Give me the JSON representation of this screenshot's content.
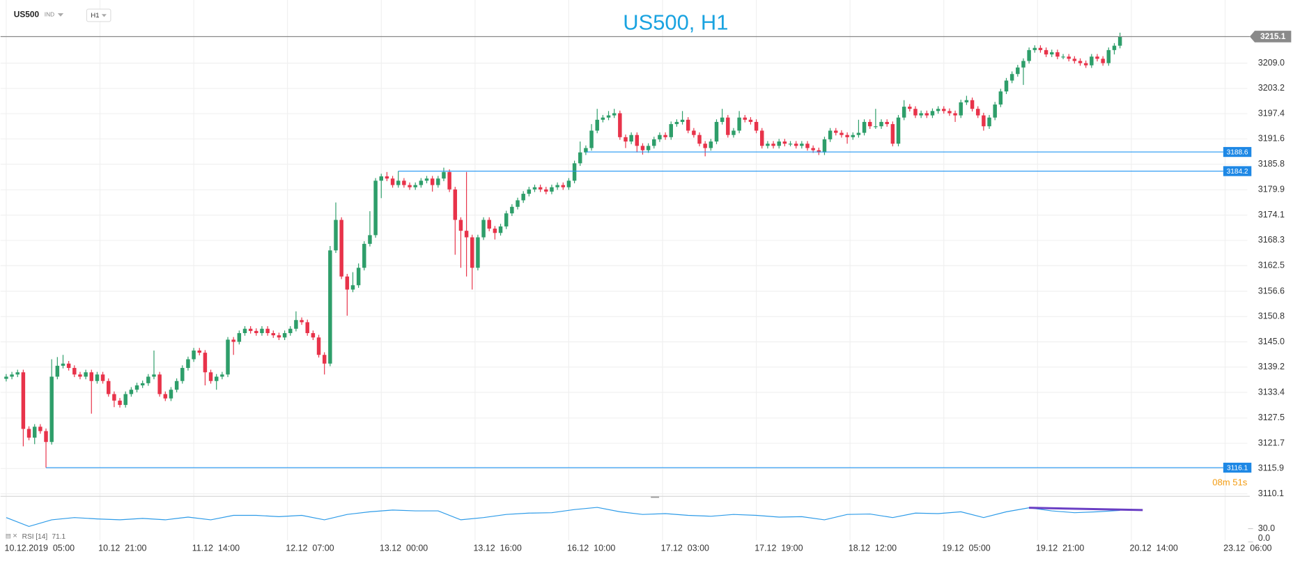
{
  "header": {
    "symbol": "US500",
    "market": "IND",
    "timeframe": "H1"
  },
  "chart_data": {
    "type": "candlestick",
    "title": "US500, H1",
    "up_color": "#2e9e6a",
    "down_color": "#e8334a",
    "xlim": [
      -1,
      218.4
    ],
    "ylim": [
      3109.7,
      3223.5
    ],
    "xticks": [
      {
        "value": 0,
        "label": "10.12.2019  05:00"
      },
      {
        "value": 16.5,
        "label": "10.12  21:00"
      },
      {
        "value": 33,
        "label": "11.12  14:00"
      },
      {
        "value": 49.5,
        "label": "12.12  07:00"
      },
      {
        "value": 66,
        "label": "13.12  00:00"
      },
      {
        "value": 82.5,
        "label": "13.12  16:00"
      },
      {
        "value": 99,
        "label": "16.12  10:00"
      },
      {
        "value": 115.5,
        "label": "17.12  03:00"
      },
      {
        "value": 132,
        "label": "17.12  19:00"
      },
      {
        "value": 148.5,
        "label": "18.12  12:00"
      },
      {
        "value": 165,
        "label": "19.12  05:00"
      },
      {
        "value": 181.5,
        "label": "19.12  21:00"
      },
      {
        "value": 198,
        "label": "20.12  14:00"
      },
      {
        "value": 214.5,
        "label": "23.12  06:00"
      }
    ],
    "yticks": [
      3110.1,
      3115.9,
      3121.7,
      3127.5,
      3133.4,
      3139.2,
      {
        "value": 3145,
        "label": "3145.0"
      },
      3150.8,
      3156.6,
      3162.5,
      3168.3,
      3174.1,
      3179.9,
      3185.8,
      3191.6,
      3197.4,
      3203.2,
      {
        "value": 3209,
        "label": "3209.0"
      }
    ],
    "grid": true,
    "candles": [
      [
        3136.5,
        3137.6,
        3135.9,
        3137.0
      ],
      [
        3137.0,
        3138.1,
        3136.4,
        3137.5
      ],
      [
        3137.5,
        3138.6,
        3136.9,
        3138.0
      ],
      [
        3138.0,
        3138.6,
        3121.0,
        3125.0
      ],
      [
        3125.0,
        3125.6,
        3122.4,
        3123.0
      ],
      [
        3123.0,
        3126.1,
        3121.5,
        3125.5
      ],
      [
        3125.5,
        3126.1,
        3123.9,
        3124.5
      ],
      [
        3124.5,
        3125.1,
        3116.1,
        3122.0
      ],
      [
        3122.0,
        3141.0,
        3121.4,
        3137.0
      ],
      [
        3137.0,
        3141.5,
        3136.4,
        3139.5
      ],
      [
        3139.5,
        3142.0,
        3138.9,
        3140.0
      ],
      [
        3140.0,
        3140.6,
        3138.4,
        3139.0
      ],
      [
        3139.0,
        3139.6,
        3136.9,
        3137.5
      ],
      [
        3137.5,
        3138.1,
        3136.4,
        3137.0
      ],
      [
        3137.0,
        3138.6,
        3136.4,
        3138.0
      ],
      [
        3138.0,
        3138.6,
        3128.5,
        3136.0
      ],
      [
        3136.0,
        3138.1,
        3135.4,
        3137.5
      ],
      [
        3137.5,
        3138.1,
        3135.4,
        3136.0
      ],
      [
        3136.0,
        3136.6,
        3132.4,
        3133.0
      ],
      [
        3133.0,
        3133.6,
        3130.0,
        3131.5
      ],
      [
        3131.5,
        3132.1,
        3129.9,
        3130.5
      ],
      [
        3130.5,
        3133.6,
        3129.9,
        3133.0
      ],
      [
        3133.0,
        3134.6,
        3132.4,
        3134.0
      ],
      [
        3134.0,
        3135.6,
        3133.4,
        3135.0
      ],
      [
        3135.0,
        3136.1,
        3134.4,
        3135.5
      ],
      [
        3135.5,
        3137.6,
        3134.9,
        3137.0
      ],
      [
        3137.0,
        3143.0,
        3136.4,
        3137.5
      ],
      [
        3137.5,
        3138.1,
        3132.4,
        3133.0
      ],
      [
        3133.0,
        3133.6,
        3131.4,
        3132.0
      ],
      [
        3132.0,
        3134.6,
        3131.4,
        3134.0
      ],
      [
        3134.0,
        3136.6,
        3133.4,
        3136.0
      ],
      [
        3136.0,
        3139.6,
        3135.4,
        3139.0
      ],
      [
        3139.0,
        3141.6,
        3138.4,
        3141.0
      ],
      [
        3141.0,
        3143.6,
        3140.4,
        3143.0
      ],
      [
        3143.0,
        3143.6,
        3141.9,
        3142.5
      ],
      [
        3142.5,
        3143.1,
        3135.0,
        3138.0
      ],
      [
        3138.0,
        3138.6,
        3135.4,
        3136.0
      ],
      [
        3136.0,
        3137.6,
        3134.0,
        3137.0
      ],
      [
        3137.0,
        3138.1,
        3136.4,
        3137.5
      ],
      [
        3137.5,
        3146.1,
        3136.9,
        3145.5
      ],
      [
        3145.5,
        3146.1,
        3142.0,
        3145.0
      ],
      [
        3145.0,
        3147.6,
        3144.4,
        3147.0
      ],
      [
        3147.0,
        3148.6,
        3146.4,
        3148.0
      ],
      [
        3148.0,
        3148.6,
        3146.9,
        3147.5
      ],
      [
        3147.5,
        3148.1,
        3146.4,
        3147.0
      ],
      [
        3147.0,
        3148.6,
        3146.4,
        3148.0
      ],
      [
        3148.0,
        3148.6,
        3146.4,
        3147.0
      ],
      [
        3147.0,
        3147.6,
        3145.9,
        3146.5
      ],
      [
        3146.5,
        3147.1,
        3145.4,
        3146.0
      ],
      [
        3146.0,
        3147.6,
        3145.4,
        3147.0
      ],
      [
        3147.0,
        3148.6,
        3146.4,
        3148.0
      ],
      [
        3148.0,
        3152.0,
        3147.4,
        3150.0
      ],
      [
        3150.0,
        3150.6,
        3148.9,
        3149.5
      ],
      [
        3149.5,
        3150.1,
        3146.4,
        3147.0
      ],
      [
        3147.0,
        3147.6,
        3145.4,
        3146.0
      ],
      [
        3146.0,
        3146.6,
        3141.4,
        3142.0
      ],
      [
        3142.0,
        3142.6,
        3137.5,
        3140.0
      ],
      [
        3140.0,
        3167.0,
        3139.4,
        3166.0
      ],
      [
        3166.0,
        3177.0,
        3165.4,
        3173.0
      ],
      [
        3173.0,
        3173.6,
        3159.4,
        3160.0
      ],
      [
        3160.0,
        3160.6,
        3151.0,
        3157.0
      ],
      [
        3157.0,
        3161.0,
        3156.4,
        3158.0
      ],
      [
        3158.0,
        3163.0,
        3157.4,
        3162.0
      ],
      [
        3162.0,
        3168.1,
        3161.4,
        3167.5
      ],
      [
        3167.5,
        3175.0,
        3166.9,
        3169.5
      ],
      [
        3169.5,
        3182.6,
        3168.9,
        3182.0
      ],
      [
        3182.0,
        3183.6,
        3178.0,
        3183.0
      ],
      [
        3183.0,
        3184.0,
        3181.9,
        3182.5
      ],
      [
        3182.5,
        3183.1,
        3180.4,
        3181.0
      ],
      [
        3181.0,
        3184.2,
        3180.4,
        3182.0
      ],
      [
        3182.0,
        3182.6,
        3180.4,
        3181.0
      ],
      [
        3181.0,
        3181.6,
        3179.9,
        3180.5
      ],
      [
        3180.5,
        3181.6,
        3179.9,
        3181.0
      ],
      [
        3181.0,
        3182.6,
        3180.4,
        3182.0
      ],
      [
        3182.0,
        3183.1,
        3181.4,
        3182.5
      ],
      [
        3182.5,
        3183.1,
        3179.5,
        3181.0
      ],
      [
        3181.0,
        3183.1,
        3180.4,
        3182.5
      ],
      [
        3182.5,
        3185.0,
        3181.9,
        3184.0
      ],
      [
        3184.0,
        3184.6,
        3179.4,
        3180.0
      ],
      [
        3180.0,
        3180.6,
        3165.0,
        3173.0
      ],
      [
        3173.0,
        3173.6,
        3162.0,
        3170.5
      ],
      [
        3170.5,
        3184.0,
        3160.0,
        3169.0
      ],
      [
        3169.0,
        3169.6,
        3157.0,
        3162.0
      ],
      [
        3162.0,
        3169.6,
        3161.4,
        3169.0
      ],
      [
        3169.0,
        3173.6,
        3168.4,
        3173.0
      ],
      [
        3173.0,
        3173.6,
        3170.4,
        3171.0
      ],
      [
        3171.0,
        3171.6,
        3168.5,
        3170.0
      ],
      [
        3170.0,
        3172.1,
        3169.4,
        3171.5
      ],
      [
        3171.5,
        3175.1,
        3170.9,
        3174.5
      ],
      [
        3174.5,
        3176.6,
        3173.9,
        3176.0
      ],
      [
        3176.0,
        3178.1,
        3175.4,
        3177.5
      ],
      [
        3177.5,
        3179.6,
        3176.9,
        3179.0
      ],
      [
        3179.0,
        3180.6,
        3178.4,
        3180.0
      ],
      [
        3180.0,
        3181.1,
        3179.4,
        3180.5
      ],
      [
        3180.5,
        3181.1,
        3179.4,
        3180.0
      ],
      [
        3180.0,
        3180.6,
        3178.9,
        3179.5
      ],
      [
        3179.5,
        3181.1,
        3178.9,
        3180.5
      ],
      [
        3180.5,
        3181.6,
        3179.9,
        3181.0
      ],
      [
        3181.0,
        3181.6,
        3179.9,
        3180.5
      ],
      [
        3180.5,
        3182.6,
        3179.9,
        3182.0
      ],
      [
        3182.0,
        3186.6,
        3181.4,
        3186.0
      ],
      [
        3186.0,
        3191.0,
        3185.4,
        3188.5
      ],
      [
        3188.5,
        3190.1,
        3187.9,
        3189.5
      ],
      [
        3189.5,
        3195.0,
        3188.9,
        3193.5
      ],
      [
        3193.5,
        3198.5,
        3192.9,
        3196.0
      ],
      [
        3196.0,
        3197.1,
        3195.4,
        3196.5
      ],
      [
        3196.5,
        3198.0,
        3195.9,
        3197.0
      ],
      [
        3197.0,
        3198.5,
        3196.4,
        3197.5
      ],
      [
        3197.5,
        3198.1,
        3191.4,
        3192.0
      ],
      [
        3192.0,
        3192.6,
        3189.5,
        3191.0
      ],
      [
        3191.0,
        3193.1,
        3190.4,
        3192.5
      ],
      [
        3192.5,
        3193.1,
        3188.5,
        3190.0
      ],
      [
        3190.0,
        3190.6,
        3188.0,
        3189.0
      ],
      [
        3189.0,
        3190.6,
        3188.4,
        3190.0
      ],
      [
        3190.0,
        3192.1,
        3189.4,
        3191.5
      ],
      [
        3191.5,
        3193.1,
        3190.9,
        3192.5
      ],
      [
        3192.5,
        3193.1,
        3191.4,
        3192.0
      ],
      [
        3192.0,
        3195.6,
        3191.4,
        3195.0
      ],
      [
        3195.0,
        3196.1,
        3194.4,
        3195.5
      ],
      [
        3195.5,
        3198.0,
        3194.9,
        3196.0
      ],
      [
        3196.0,
        3196.6,
        3192.9,
        3193.5
      ],
      [
        3193.5,
        3194.1,
        3191.9,
        3192.5
      ],
      [
        3192.5,
        3193.1,
        3189.9,
        3190.5
      ],
      [
        3190.5,
        3191.1,
        3187.6,
        3189.5
      ],
      [
        3189.5,
        3191.6,
        3188.9,
        3191.0
      ],
      [
        3191.0,
        3196.1,
        3190.4,
        3195.5
      ],
      [
        3195.5,
        3198.5,
        3194.9,
        3196.5
      ],
      [
        3196.5,
        3197.1,
        3191.9,
        3192.5
      ],
      [
        3192.5,
        3194.1,
        3191.9,
        3193.5
      ],
      [
        3193.5,
        3198.0,
        3192.9,
        3196.5
      ],
      [
        3196.5,
        3197.1,
        3195.4,
        3196.0
      ],
      [
        3196.0,
        3196.6,
        3194.9,
        3195.5
      ],
      [
        3195.5,
        3196.1,
        3192.9,
        3193.5
      ],
      [
        3193.5,
        3194.1,
        3189.4,
        3190.0
      ],
      [
        3190.0,
        3191.1,
        3189.4,
        3190.5
      ],
      [
        3190.5,
        3191.1,
        3189.4,
        3190.0
      ],
      [
        3190.0,
        3191.6,
        3189.4,
        3191.0
      ],
      [
        3191.0,
        3191.6,
        3189.9,
        3190.5
      ],
      [
        3190.5,
        3191.1,
        3189.9,
        3190.5
      ],
      [
        3190.5,
        3191.1,
        3189.4,
        3190.0
      ],
      [
        3190.0,
        3191.1,
        3189.4,
        3190.5
      ],
      [
        3190.5,
        3191.1,
        3188.9,
        3189.5
      ],
      [
        3189.5,
        3190.1,
        3188.4,
        3189.0
      ],
      [
        3189.0,
        3189.6,
        3187.9,
        3188.5
      ],
      [
        3188.5,
        3192.1,
        3187.9,
        3191.5
      ],
      [
        3191.5,
        3194.1,
        3190.9,
        3193.5
      ],
      [
        3193.5,
        3194.1,
        3192.4,
        3193.0
      ],
      [
        3193.0,
        3193.6,
        3191.9,
        3192.5
      ],
      [
        3192.5,
        3193.1,
        3190.5,
        3192.0
      ],
      [
        3192.0,
        3193.1,
        3191.4,
        3192.5
      ],
      [
        3192.5,
        3196.0,
        3191.9,
        3193.0
      ],
      [
        3193.0,
        3196.1,
        3192.4,
        3195.5
      ],
      [
        3195.5,
        3196.1,
        3193.9,
        3194.5
      ],
      [
        3194.5,
        3198.5,
        3193.9,
        3194.5
      ],
      [
        3194.5,
        3196.1,
        3193.9,
        3195.5
      ],
      [
        3195.5,
        3196.1,
        3194.4,
        3195.0
      ],
      [
        3195.0,
        3195.6,
        3189.9,
        3190.5
      ],
      [
        3190.5,
        3197.1,
        3189.9,
        3196.5
      ],
      [
        3196.5,
        3200.5,
        3195.9,
        3199.0
      ],
      [
        3199.0,
        3199.6,
        3197.9,
        3198.5
      ],
      [
        3198.5,
        3199.1,
        3196.4,
        3197.0
      ],
      [
        3197.0,
        3198.1,
        3196.4,
        3197.5
      ],
      [
        3197.5,
        3198.1,
        3196.4,
        3197.0
      ],
      [
        3197.0,
        3198.6,
        3196.4,
        3198.0
      ],
      [
        3198.0,
        3199.1,
        3197.4,
        3198.5
      ],
      [
        3198.5,
        3199.1,
        3197.4,
        3198.0
      ],
      [
        3198.0,
        3198.6,
        3196.9,
        3197.5
      ],
      [
        3197.5,
        3198.1,
        3195.5,
        3197.0
      ],
      [
        3197.0,
        3200.6,
        3196.4,
        3200.0
      ],
      [
        3200.0,
        3201.5,
        3199.4,
        3200.5
      ],
      [
        3200.5,
        3201.1,
        3197.9,
        3198.5
      ],
      [
        3198.5,
        3199.1,
        3196.4,
        3197.0
      ],
      [
        3197.0,
        3197.6,
        3193.5,
        3194.5
      ],
      [
        3194.5,
        3197.1,
        3193.9,
        3196.5
      ],
      [
        3196.5,
        3200.1,
        3195.9,
        3199.5
      ],
      [
        3199.5,
        3203.1,
        3198.9,
        3202.5
      ],
      [
        3202.5,
        3205.6,
        3201.9,
        3205.0
      ],
      [
        3205.0,
        3207.1,
        3204.4,
        3206.5
      ],
      [
        3206.5,
        3208.6,
        3205.9,
        3208.0
      ],
      [
        3208.0,
        3210.1,
        3204.0,
        3209.5
      ],
      [
        3209.5,
        3212.6,
        3208.9,
        3212.0
      ],
      [
        3212.0,
        3213.1,
        3211.4,
        3212.5
      ],
      [
        3212.5,
        3213.1,
        3211.4,
        3212.0
      ],
      [
        3212.0,
        3212.6,
        3210.4,
        3211.0
      ],
      [
        3211.0,
        3212.1,
        3210.4,
        3211.5
      ],
      [
        3211.5,
        3212.1,
        3209.9,
        3210.5
      ],
      [
        3210.5,
        3211.1,
        3209.9,
        3210.5
      ],
      [
        3210.5,
        3211.1,
        3209.4,
        3210.0
      ],
      [
        3210.0,
        3210.6,
        3208.9,
        3209.5
      ],
      [
        3209.5,
        3210.1,
        3208.4,
        3209.0
      ],
      [
        3209.0,
        3209.6,
        3207.9,
        3208.5
      ],
      [
        3208.5,
        3211.1,
        3207.9,
        3210.5
      ],
      [
        3210.5,
        3211.1,
        3209.4,
        3210.0
      ],
      [
        3210.0,
        3210.6,
        3208.4,
        3209.0
      ],
      [
        3209.0,
        3212.6,
        3208.4,
        3212.0
      ],
      [
        3212.0,
        3213.6,
        3211.0,
        3213.0
      ],
      [
        3213.0,
        3216.0,
        3212.4,
        3215.1
      ]
    ],
    "current_price": 3215.1,
    "countdown": "08m 51s",
    "levels": [
      {
        "value": 3188.6,
        "start": 102
      },
      {
        "value": 3184.2,
        "start": 69
      },
      {
        "value": 3116.1,
        "start": 7
      }
    ],
    "rsi": {
      "label": "RSI [14]",
      "color": "#2d9be8",
      "ylim": [
        0,
        100
      ],
      "yticks": [
        {
          "value": 30,
          "label": "30.0"
        },
        {
          "value": 0,
          "label": "0.0"
        }
      ],
      "x": [
        0,
        4,
        8,
        12,
        16,
        20,
        24,
        28,
        32,
        36,
        40,
        44,
        48,
        52,
        56,
        60,
        64,
        68,
        72,
        76,
        80,
        84,
        88,
        92,
        96,
        100,
        104,
        108,
        112,
        116,
        120,
        124,
        128,
        132,
        136,
        140,
        144,
        148,
        152,
        156,
        160,
        164,
        168,
        172,
        176,
        180,
        184,
        188,
        192,
        196
      ],
      "values": [
        55,
        35,
        50,
        55,
        52,
        50,
        53,
        50,
        56,
        50,
        60,
        60,
        57,
        60,
        50,
        62,
        68,
        72,
        70,
        70,
        50,
        55,
        62,
        65,
        66,
        73,
        78,
        68,
        62,
        64,
        60,
        58,
        62,
        60,
        56,
        57,
        50,
        62,
        63,
        55,
        65,
        64,
        68,
        55,
        68,
        77,
        70,
        66,
        68,
        71.1
      ],
      "trendline": {
        "color": "#6a3fc4",
        "x": [
          180,
          200
        ],
        "values": [
          77,
          72
        ]
      }
    }
  }
}
